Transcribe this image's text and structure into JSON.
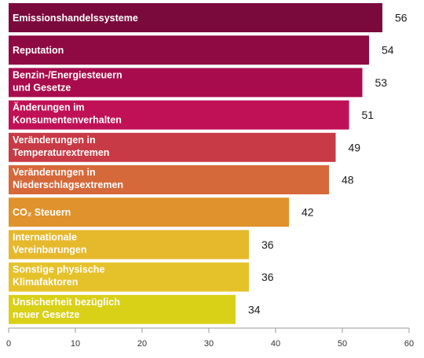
{
  "chart_data": {
    "type": "bar",
    "orientation": "horizontal",
    "xlim": [
      0,
      60
    ],
    "x_ticks": [
      "0",
      "10",
      "20",
      "30",
      "40",
      "50",
      "60"
    ],
    "grid": false,
    "categories": [
      [
        "Emissionshandelssysteme"
      ],
      [
        "Reputation"
      ],
      [
        "Benzin-/Energiesteuern",
        "und Gesetze"
      ],
      [
        "Änderungen im",
        "Konsumentenverhalten"
      ],
      [
        "Veränderungen in",
        "Temperaturextremen"
      ],
      [
        "Veränderungen in",
        "Niederschlagsextremen"
      ],
      [
        "CO₂ Steuern"
      ],
      [
        "Internationale",
        "Vereinbarungen"
      ],
      [
        "Sonstige physische",
        "Klimafaktoren"
      ],
      [
        "Unsicherheit bezüglich",
        "neuer Gesetze"
      ]
    ],
    "values": [
      56,
      54,
      53,
      51,
      49,
      48,
      42,
      36,
      36,
      34
    ],
    "colors": [
      "#7a0a3c",
      "#8f0a42",
      "#a80c4c",
      "#c01056",
      "#c83a45",
      "#d6693a",
      "#e0922c",
      "#e6b82c",
      "#e6c22a",
      "#d9d018"
    ]
  }
}
